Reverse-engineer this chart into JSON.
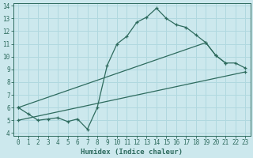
{
  "xlabel": "Humidex (Indice chaleur)",
  "bg_color": "#cce8ed",
  "grid_color": "#b0d8df",
  "line_color": "#2e6b5e",
  "xlim": [
    -0.5,
    23.5
  ],
  "ylim": [
    3.8,
    14.2
  ],
  "xticks": [
    0,
    1,
    2,
    3,
    4,
    5,
    6,
    7,
    8,
    9,
    10,
    11,
    12,
    13,
    14,
    15,
    16,
    17,
    18,
    19,
    20,
    21,
    22,
    23
  ],
  "yticks": [
    4,
    5,
    6,
    7,
    8,
    9,
    10,
    11,
    12,
    13,
    14
  ],
  "line1_x": [
    0,
    1,
    2,
    3,
    4,
    5,
    6,
    7,
    8,
    9,
    10,
    11,
    12,
    13,
    14,
    15,
    16,
    17,
    18,
    19,
    20,
    21
  ],
  "line1_y": [
    6.0,
    5.5,
    5.0,
    5.1,
    5.2,
    4.9,
    5.1,
    4.3,
    6.0,
    9.3,
    11.0,
    11.6,
    12.7,
    13.1,
    13.8,
    13.0,
    12.5,
    12.3,
    11.7,
    11.1,
    10.1,
    9.5
  ],
  "line2_x": [
    0,
    19,
    20,
    21,
    22,
    23
  ],
  "line2_y": [
    6.0,
    11.1,
    10.1,
    9.5,
    9.5,
    9.1
  ],
  "line3_x": [
    0,
    23
  ],
  "line3_y": [
    5.0,
    8.8
  ]
}
